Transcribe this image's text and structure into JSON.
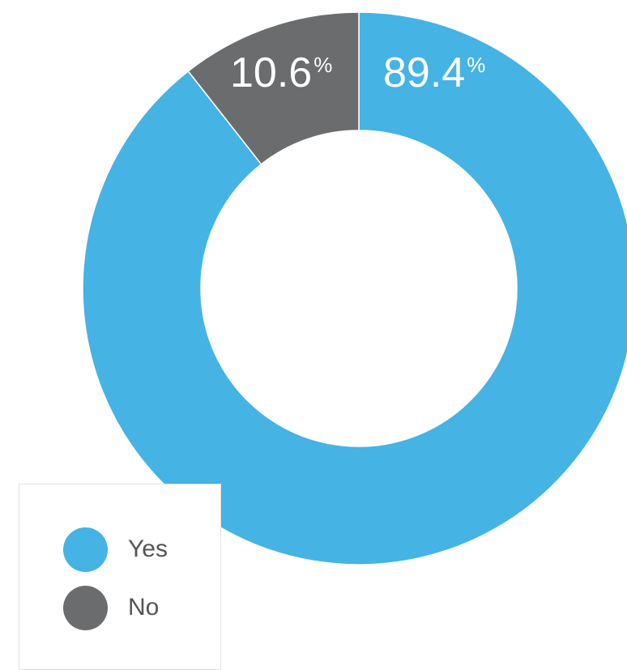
{
  "chart_data": {
    "type": "pie",
    "variant": "donut",
    "categories": [
      "Yes",
      "No"
    ],
    "values": [
      89.4,
      10.6
    ],
    "value_labels": [
      "89.4",
      "10.6"
    ],
    "unit_suffix": "%",
    "colors": [
      "#45b3e4",
      "#6b6c6e"
    ],
    "title": "",
    "legend": {
      "placement": "bottom-left",
      "entries": [
        "Yes",
        "No"
      ]
    }
  }
}
